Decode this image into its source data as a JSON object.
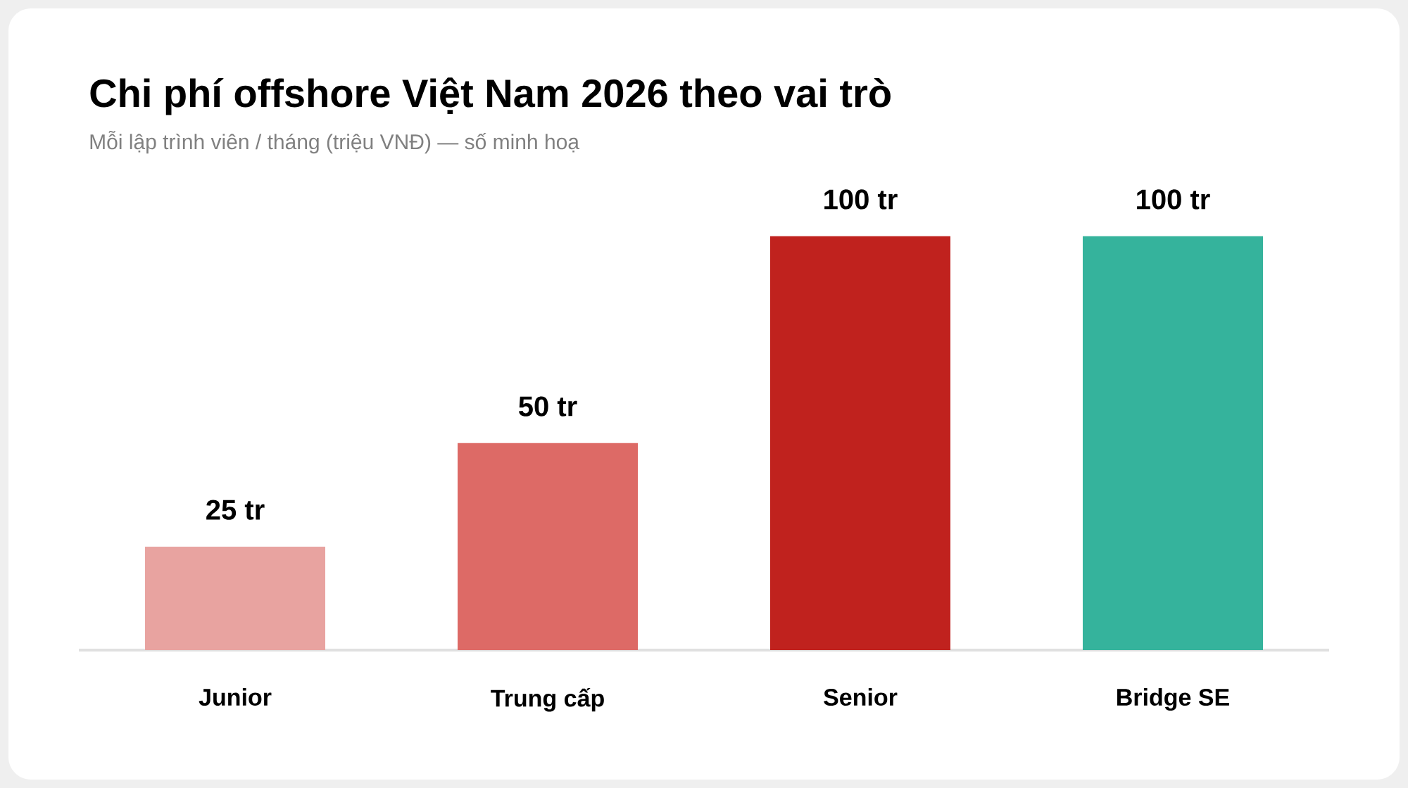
{
  "chart_data": {
    "type": "bar",
    "title": "Chi phí offshore Việt Nam 2026 theo vai trò",
    "subtitle": "Mỗi lập trình viên / tháng (triệu VNĐ) — số minh hoạ",
    "categories": [
      "Junior",
      "Trung cấp",
      "Senior",
      "Bridge SE"
    ],
    "values": [
      25,
      50,
      100,
      100
    ],
    "value_labels": [
      "25 tr",
      "50 tr",
      "100 tr",
      "100 tr"
    ],
    "colors": [
      "#e8a3a0",
      "#dd6a66",
      "#c0221e",
      "#35b39c"
    ],
    "tick_labels": "x"
  }
}
